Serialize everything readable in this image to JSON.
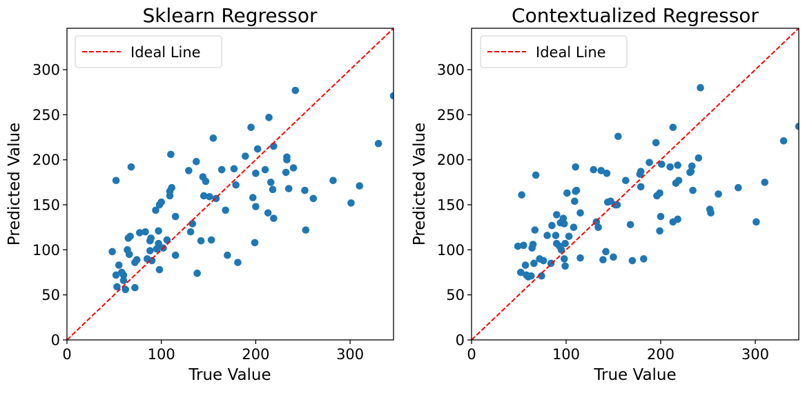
{
  "colors": {
    "points": "#1f77b4",
    "ideal_line": "#ff0000",
    "axes": "#000000",
    "legend_border": "#cccccc"
  },
  "chart_data": [
    {
      "type": "scatter",
      "title": "Sklearn Regressor",
      "xlabel": "True Value",
      "ylabel": "Predicted Value",
      "xlim": [
        0,
        346
      ],
      "ylim": [
        0,
        346
      ],
      "xticks": [
        0,
        100,
        200,
        300
      ],
      "yticks": [
        0,
        50,
        100,
        150,
        200,
        250,
        300
      ],
      "grid": false,
      "legend": {
        "position": "top-left",
        "entries": [
          {
            "name": "Ideal Line",
            "style": "dashed",
            "color": "#ff0000"
          }
        ]
      },
      "ideal_line": [
        [
          0,
          0
        ],
        [
          346,
          346
        ]
      ],
      "points": [
        [
          52,
          177
        ],
        [
          68,
          192
        ],
        [
          48,
          98
        ],
        [
          52,
          72
        ],
        [
          53,
          59
        ],
        [
          55,
          83
        ],
        [
          58,
          75
        ],
        [
          60,
          72
        ],
        [
          60,
          66
        ],
        [
          62,
          56
        ],
        [
          64,
          100
        ],
        [
          65,
          113
        ],
        [
          66,
          95
        ],
        [
          67,
          115
        ],
        [
          72,
          86
        ],
        [
          72,
          58
        ],
        [
          74,
          89
        ],
        [
          77,
          119
        ],
        [
          83,
          120
        ],
        [
          85,
          90
        ],
        [
          88,
          99
        ],
        [
          88,
          110
        ],
        [
          89,
          113
        ],
        [
          90,
          88
        ],
        [
          94,
          144
        ],
        [
          95,
          101
        ],
        [
          97,
          121
        ],
        [
          97,
          107
        ],
        [
          98,
          150
        ],
        [
          98,
          104
        ],
        [
          98,
          78
        ],
        [
          100,
          153
        ],
        [
          102,
          102
        ],
        [
          106,
          111
        ],
        [
          109,
          160
        ],
        [
          109,
          165
        ],
        [
          110,
          206
        ],
        [
          111,
          169
        ],
        [
          115,
          137
        ],
        [
          115,
          94
        ],
        [
          129,
          188
        ],
        [
          131,
          120
        ],
        [
          133,
          129
        ],
        [
          137,
          198
        ],
        [
          138,
          74
        ],
        [
          142,
          110
        ],
        [
          144,
          181
        ],
        [
          145,
          160
        ],
        [
          147,
          176
        ],
        [
          151,
          159
        ],
        [
          153,
          111
        ],
        [
          155,
          224
        ],
        [
          158,
          157
        ],
        [
          164,
          189
        ],
        [
          168,
          144
        ],
        [
          170,
          94
        ],
        [
          177,
          190
        ],
        [
          179,
          172
        ],
        [
          181,
          86
        ],
        [
          189,
          204
        ],
        [
          195,
          236
        ],
        [
          197,
          158
        ],
        [
          199,
          108
        ],
        [
          200,
          185
        ],
        [
          200,
          148
        ],
        [
          202,
          212
        ],
        [
          210,
          189
        ],
        [
          213,
          141
        ],
        [
          214,
          247
        ],
        [
          216,
          175
        ],
        [
          218,
          167
        ],
        [
          219,
          135
        ],
        [
          219,
          215
        ],
        [
          232,
          186
        ],
        [
          233,
          203
        ],
        [
          233,
          200
        ],
        [
          235,
          168
        ],
        [
          240,
          191
        ],
        [
          242,
          277
        ],
        [
          252,
          166
        ],
        [
          253,
          122
        ],
        [
          261,
          157
        ],
        [
          282,
          177
        ],
        [
          301,
          152
        ],
        [
          310,
          171
        ],
        [
          330,
          218
        ],
        [
          346,
          271
        ]
      ]
    },
    {
      "type": "scatter",
      "title": "Contextualized Regressor",
      "xlabel": "True Value",
      "ylabel": "Predicted Value",
      "xlim": [
        0,
        346
      ],
      "ylim": [
        0,
        346
      ],
      "xticks": [
        0,
        100,
        200,
        300
      ],
      "yticks": [
        0,
        50,
        100,
        150,
        200,
        250,
        300
      ],
      "grid": false,
      "legend": {
        "position": "top-left",
        "entries": [
          {
            "name": "Ideal Line",
            "style": "dashed",
            "color": "#ff0000"
          }
        ]
      },
      "ideal_line": [
        [
          0,
          0
        ],
        [
          346,
          346
        ]
      ],
      "points": [
        [
          49,
          104
        ],
        [
          52,
          75
        ],
        [
          53,
          161
        ],
        [
          55,
          105
        ],
        [
          57,
          83
        ],
        [
          58,
          72
        ],
        [
          60,
          70
        ],
        [
          63,
          71
        ],
        [
          64,
          102
        ],
        [
          65,
          106
        ],
        [
          66,
          85
        ],
        [
          67,
          122
        ],
        [
          68,
          183
        ],
        [
          72,
          90
        ],
        [
          74,
          71
        ],
        [
          76,
          88
        ],
        [
          80,
          116
        ],
        [
          84,
          85
        ],
        [
          85,
          127
        ],
        [
          89,
          116
        ],
        [
          90,
          107
        ],
        [
          90,
          139
        ],
        [
          93,
          104
        ],
        [
          94,
          130
        ],
        [
          95,
          100
        ],
        [
          97,
          135
        ],
        [
          98,
          90
        ],
        [
          98,
          129
        ],
        [
          99,
          82
        ],
        [
          99,
          107
        ],
        [
          101,
          163
        ],
        [
          103,
          115
        ],
        [
          108,
          125
        ],
        [
          109,
          154
        ],
        [
          110,
          165
        ],
        [
          110,
          192
        ],
        [
          111,
          166
        ],
        [
          115,
          141
        ],
        [
          115,
          91
        ],
        [
          129,
          189
        ],
        [
          132,
          131
        ],
        [
          134,
          125
        ],
        [
          137,
          188
        ],
        [
          139,
          89
        ],
        [
          142,
          98
        ],
        [
          143,
          185
        ],
        [
          144,
          153
        ],
        [
          147,
          154
        ],
        [
          150,
          92
        ],
        [
          152,
          150
        ],
        [
          154,
          150
        ],
        [
          155,
          226
        ],
        [
          163,
          177
        ],
        [
          168,
          128
        ],
        [
          170,
          88
        ],
        [
          178,
          184
        ],
        [
          179,
          187
        ],
        [
          179,
          170
        ],
        [
          182,
          90
        ],
        [
          188,
          197
        ],
        [
          195,
          219
        ],
        [
          196,
          160
        ],
        [
          199,
          121
        ],
        [
          199,
          163
        ],
        [
          200,
          137
        ],
        [
          201,
          195
        ],
        [
          210,
          192
        ],
        [
          213,
          131
        ],
        [
          213,
          236
        ],
        [
          216,
          174
        ],
        [
          218,
          134
        ],
        [
          218,
          194
        ],
        [
          219,
          177
        ],
        [
          231,
          186
        ],
        [
          232,
          187
        ],
        [
          233,
          193
        ],
        [
          234,
          166
        ],
        [
          240,
          202
        ],
        [
          242,
          280
        ],
        [
          252,
          145
        ],
        [
          253,
          141
        ],
        [
          261,
          162
        ],
        [
          282,
          169
        ],
        [
          301,
          131
        ],
        [
          310,
          175
        ],
        [
          330,
          221
        ],
        [
          346,
          237
        ]
      ]
    }
  ]
}
